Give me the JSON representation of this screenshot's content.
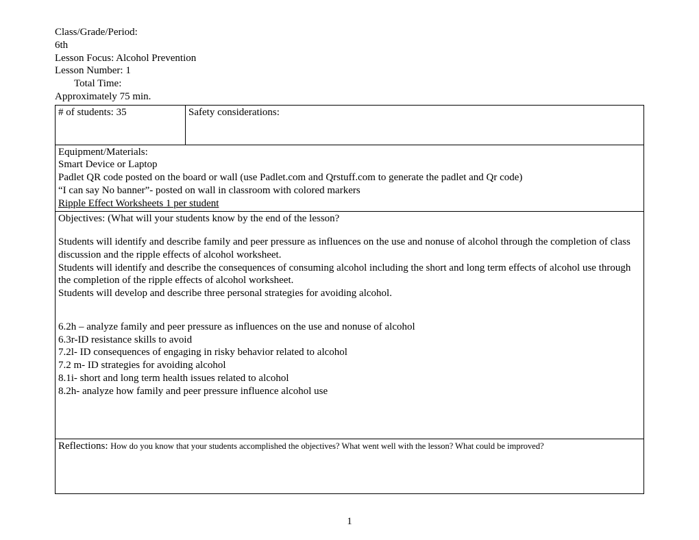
{
  "header": {
    "class_label": "Class/Grade/Period:",
    "class_value": "6th",
    "lesson_focus": "Lesson Focus: Alcohol Prevention",
    "lesson_number": "Lesson Number: 1",
    "total_time_label": "Total Time:",
    "total_time_value": "Approximately 75 min."
  },
  "row1": {
    "students": "# of students: 35",
    "safety": "Safety considerations:"
  },
  "equipment": {
    "title": "Equipment/Materials:",
    "line1": "Smart Device or Laptop",
    "line2": "Padlet QR code posted on the board or wall  (use Padlet.com and Qrstuff.com to generate the padlet and Qr code)",
    "line3": "“I can say No banner”- posted on wall in classroom with colored markers",
    "line4": "Ripple Effect Worksheets 1 per student"
  },
  "objectives": {
    "title": "Objectives: (What will your students know by the end of the lesson?",
    "p1": "Students will identify and describe family and peer pressure as influences on the use and nonuse of alcohol through the completion of class discussion and the ripple effects of alcohol worksheet.",
    "p2": "Students will identify and describe the consequences of consuming alcohol including the short and long term effects of alcohol use through the completion of the ripple effects of alcohol worksheet.",
    "p3": "Students will develop and describe three personal strategies for avoiding alcohol.",
    "s1": "6.2h – analyze family and peer pressure as influences on the use and nonuse of alcohol",
    "s2": "6.3r-ID resistance skills to avoid",
    "s3": "7.2l- ID consequences of engaging in risky behavior related to alcohol",
    "s4": "7.2 m- ID strategies for avoiding alcohol",
    "s5": "8.1i- short and long term health issues related to alcohol",
    "s6": "8.2h- analyze how family and peer pressure influence alcohol use"
  },
  "reflections": {
    "label": "Reflections: ",
    "text": "How do you know that your students accomplished the objectives? What went well with the lesson? What could be improved?"
  },
  "page_number": "1"
}
